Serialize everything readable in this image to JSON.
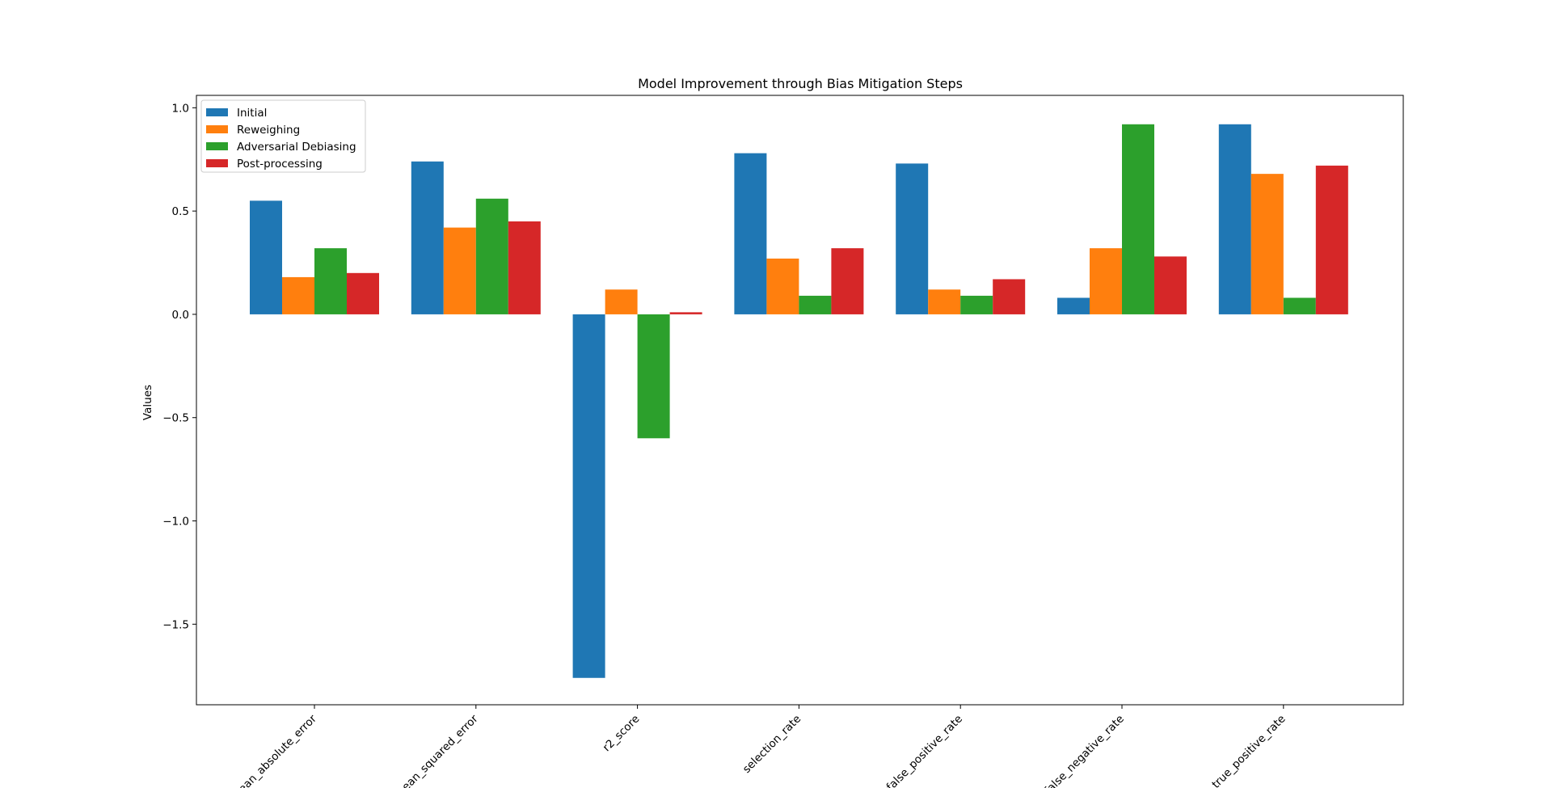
{
  "chart_data": {
    "type": "bar",
    "title": "Model Improvement through Bias Mitigation Steps",
    "xlabel": "",
    "ylabel": "Values",
    "ylim": [
      -1.89,
      1.06
    ],
    "yticks": [
      -1.5,
      -1.0,
      -0.5,
      0.0,
      0.5,
      1.0
    ],
    "ytick_labels": [
      "−1.5",
      "−1.0",
      "−0.5",
      "0.0",
      "0.5",
      "1.0"
    ],
    "categories": [
      "mean_absolute_error",
      "mean_squared_error",
      "r2_score",
      "selection_rate",
      "false_positive_rate",
      "false_negative_rate",
      "true_positive_rate"
    ],
    "series": [
      {
        "name": "Initial",
        "color": "#1f77b4",
        "values": [
          0.55,
          0.74,
          -1.76,
          0.78,
          0.73,
          0.08,
          0.92
        ]
      },
      {
        "name": "Reweighing",
        "color": "#ff7f0e",
        "values": [
          0.18,
          0.42,
          0.12,
          0.27,
          0.12,
          0.32,
          0.68
        ]
      },
      {
        "name": "Adversarial Debiasing",
        "color": "#2ca02c",
        "values": [
          0.32,
          0.56,
          -0.6,
          0.09,
          0.09,
          0.92,
          0.08
        ]
      },
      {
        "name": "Post-processing",
        "color": "#d62728",
        "values": [
          0.2,
          0.45,
          0.01,
          0.32,
          0.17,
          0.28,
          0.72
        ]
      }
    ],
    "grid": false,
    "legend_position": "upper-left"
  }
}
